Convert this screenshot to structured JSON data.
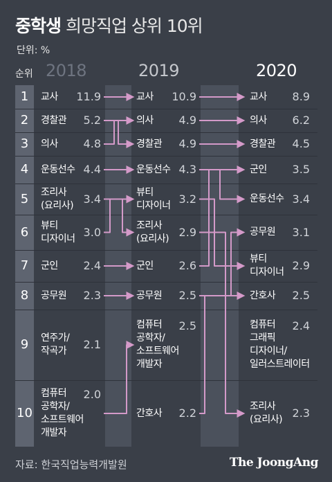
{
  "header": {
    "title_bold": "중학생",
    "title_rest": "희망직업 상위 10위",
    "unit": "단위: %",
    "rank_label": "순위"
  },
  "chart_data": {
    "type": "table",
    "years": [
      "2018",
      "2019",
      "2020"
    ],
    "ranks": [
      "1",
      "2",
      "3",
      "4",
      "5",
      "6",
      "7",
      "8",
      "9",
      "10"
    ],
    "columns": [
      {
        "year": "2018",
        "items": [
          {
            "name": "교사",
            "value": "11.9"
          },
          {
            "name": "경찰관",
            "value": "5.2"
          },
          {
            "name": "의사",
            "value": "4.8"
          },
          {
            "name": "운동선수",
            "value": "4.4"
          },
          {
            "name": "조리사\n(요리사)",
            "value": "3.4"
          },
          {
            "name": "뷰티\n디자이너",
            "value": "3.0"
          },
          {
            "name": "군인",
            "value": "2.4"
          },
          {
            "name": "공무원",
            "value": "2.3"
          },
          {
            "name": "연주가/\n작곡가",
            "value": "2.1"
          },
          {
            "name": "컴퓨터\n공학자/\n소프트웨어\n개발자",
            "value": "2.0"
          }
        ]
      },
      {
        "year": "2019",
        "items": [
          {
            "name": "교사",
            "value": "10.9"
          },
          {
            "name": "의사",
            "value": "4.9"
          },
          {
            "name": "경찰관",
            "value": "4.9"
          },
          {
            "name": "운동선수",
            "value": "4.3"
          },
          {
            "name": "뷰티\n디자이너",
            "value": "3.2"
          },
          {
            "name": "조리사\n(요리사)",
            "value": "2.9"
          },
          {
            "name": "군인",
            "value": "2.6"
          },
          {
            "name": "공무원",
            "value": "2.5"
          },
          {
            "name": "컴퓨터\n공학자/\n소프트웨어\n개발자",
            "value": "2.5"
          },
          {
            "name": "간호사",
            "value": "2.2"
          }
        ]
      },
      {
        "year": "2020",
        "items": [
          {
            "name": "교사",
            "value": "8.9"
          },
          {
            "name": "의사",
            "value": "6.2"
          },
          {
            "name": "경찰관",
            "value": "4.5"
          },
          {
            "name": "군인",
            "value": "3.5"
          },
          {
            "name": "운동선수",
            "value": "3.4"
          },
          {
            "name": "공무원",
            "value": "3.1"
          },
          {
            "name": "뷰티\n디자이너",
            "value": "2.9"
          },
          {
            "name": "간호사",
            "value": "2.5"
          },
          {
            "name": "컴퓨터\n그래픽\n디자이너/\n일러스트레이터",
            "value": "2.4"
          },
          {
            "name": "조리사\n(요리사)",
            "value": "2.3"
          }
        ]
      }
    ],
    "transitions": [
      {
        "from": "2018",
        "to": "2019",
        "pairs": [
          [
            1,
            1
          ],
          [
            2,
            3
          ],
          [
            3,
            2
          ],
          [
            4,
            4
          ],
          [
            5,
            6
          ],
          [
            6,
            5
          ],
          [
            7,
            7
          ],
          [
            8,
            8
          ],
          [
            10,
            9
          ]
        ]
      },
      {
        "from": "2019",
        "to": "2020",
        "pairs": [
          [
            1,
            1
          ],
          [
            2,
            2
          ],
          [
            3,
            3
          ],
          [
            4,
            5
          ],
          [
            5,
            7
          ],
          [
            6,
            10
          ],
          [
            7,
            4
          ],
          [
            8,
            6
          ],
          [
            10,
            8
          ]
        ]
      }
    ],
    "arrow_color": "#d49ac9"
  },
  "footer": {
    "source": "자료: 한국직업능력개발원",
    "logo": "The JoongAng"
  }
}
